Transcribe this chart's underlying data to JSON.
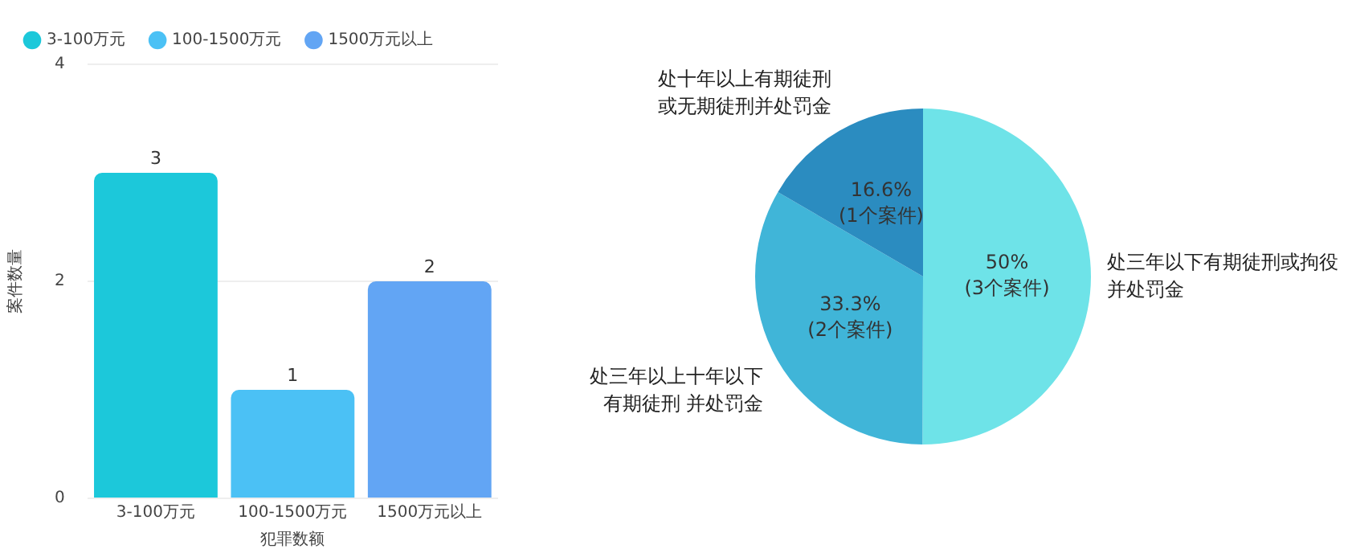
{
  "chart_data": [
    {
      "type": "bar",
      "xlabel": "犯罪数额",
      "ylabel": "案件数量",
      "categories": [
        "3-100万元",
        "100-1500万元",
        "1500万元以上"
      ],
      "series": [
        {
          "name": "3-100万元",
          "color": "#1cc8da",
          "values": [
            3,
            null,
            null
          ]
        },
        {
          "name": "100-1500万元",
          "color": "#4bc1f5",
          "values": [
            null,
            1,
            null
          ]
        },
        {
          "name": "1500万元以上",
          "color": "#62a5f4",
          "values": [
            null,
            null,
            2
          ]
        }
      ],
      "ylim": [
        0,
        4
      ],
      "yticks": [
        0,
        2,
        4
      ],
      "grid": "y",
      "legend": "top",
      "data_labels": true
    },
    {
      "type": "pie",
      "categories": [
        "处三年以下有期徒刑或拘役并处罚金",
        "处三年以上十年以下有期徒刑 并处罚金",
        "处十年以上有期徒刑或无期徒刑并处罚金"
      ],
      "values": [
        50,
        33.3,
        16.6
      ],
      "colors": [
        "#6ee3e8",
        "#40b5d8",
        "#2b8cc0"
      ],
      "value_labels": [
        "50%\n(3个案件)",
        "33.3%\n(2个案件)",
        "16.6%\n(1个案件)"
      ]
    }
  ]
}
